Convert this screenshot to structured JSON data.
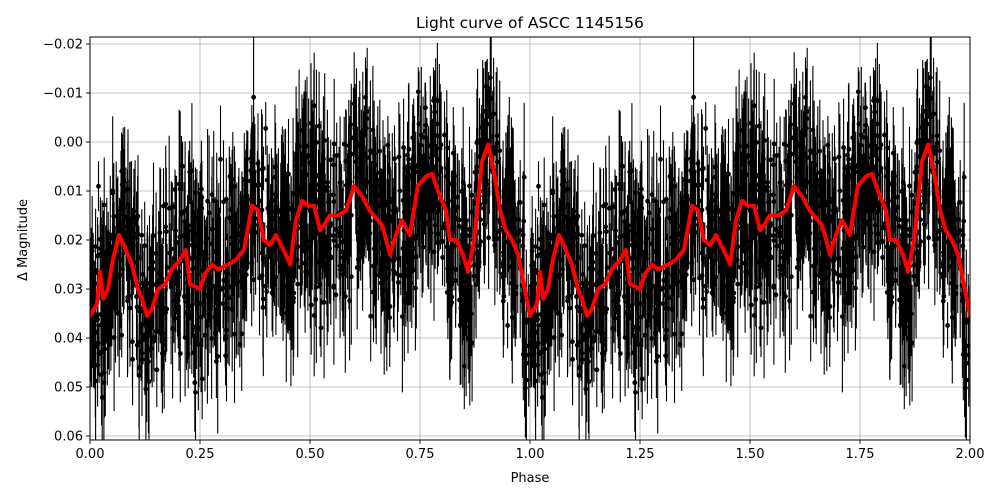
{
  "chart_data": {
    "type": "scatter",
    "title": "Light curve of ASCC 1145156",
    "xlabel": "Phase",
    "ylabel": "Δ Magnitude",
    "xlim": [
      0.0,
      2.0
    ],
    "ylim": [
      0.061,
      -0.0215
    ],
    "y_inverted": true,
    "grid": true,
    "legend": null,
    "x_ticks": [
      0.0,
      0.25,
      0.5,
      0.75,
      1.0,
      1.25,
      1.5,
      1.75,
      2.0
    ],
    "x_tick_labels": [
      "0.00",
      "0.25",
      "0.50",
      "0.75",
      "1.00",
      "1.25",
      "1.50",
      "1.75",
      "2.00"
    ],
    "y_ticks": [
      -0.02,
      -0.01,
      0.0,
      0.01,
      0.02,
      0.03,
      0.04,
      0.05,
      0.06
    ],
    "y_tick_labels": [
      "−0.02",
      "−0.01",
      "0.00",
      "0.01",
      "0.02",
      "0.03",
      "0.04",
      "0.05",
      "0.06"
    ],
    "series": [
      {
        "name": "observations",
        "kind": "errorbar-scatter",
        "color": "#000000",
        "description": "Dense black points with vertical error bars spanning roughly -0.02 to 0.06 across all phases, phase-folded twice (0-1 repeated in 1-2)"
      },
      {
        "name": "binned/smoothed model",
        "kind": "line",
        "color": "#ff0000",
        "linewidth": 4,
        "x": [
          0.0,
          0.016,
          0.023,
          0.03,
          0.041,
          0.052,
          0.066,
          0.077,
          0.095,
          0.109,
          0.118,
          0.13,
          0.141,
          0.155,
          0.171,
          0.186,
          0.205,
          0.218,
          0.227,
          0.25,
          0.261,
          0.277,
          0.291,
          0.314,
          0.332,
          0.35,
          0.368,
          0.382,
          0.395,
          0.409,
          0.423,
          0.445,
          0.455,
          0.468,
          0.482,
          0.495,
          0.509,
          0.523,
          0.532,
          0.545,
          0.564,
          0.582,
          0.6,
          0.618,
          0.636,
          0.664,
          0.682,
          0.695,
          0.709,
          0.727,
          0.745,
          0.764,
          0.777,
          0.791,
          0.809,
          0.818,
          0.832,
          0.848,
          0.859,
          0.873,
          0.891,
          0.905,
          0.918,
          0.932,
          0.945,
          0.959,
          0.973,
          0.986,
          1.0
        ],
        "y": [
          0.0355,
          0.033,
          0.0265,
          0.032,
          0.03,
          0.024,
          0.019,
          0.021,
          0.025,
          0.03,
          0.032,
          0.0355,
          0.034,
          0.03,
          0.029,
          0.026,
          0.024,
          0.022,
          0.029,
          0.03,
          0.027,
          0.025,
          0.026,
          0.025,
          0.024,
          0.022,
          0.013,
          0.014,
          0.02,
          0.021,
          0.019,
          0.023,
          0.025,
          0.016,
          0.012,
          0.013,
          0.013,
          0.018,
          0.017,
          0.015,
          0.015,
          0.014,
          0.009,
          0.011,
          0.014,
          0.017,
          0.023,
          0.019,
          0.016,
          0.019,
          0.009,
          0.007,
          0.0065,
          0.01,
          0.014,
          0.02,
          0.02,
          0.023,
          0.0265,
          0.02,
          0.004,
          0.0005,
          0.006,
          0.014,
          0.018,
          0.02,
          0.023,
          0.029,
          0.0355
        ],
        "repeats_with_period": 1.0
      }
    ]
  },
  "title": "Light curve of ASCC 1145156",
  "xlabel": "Phase",
  "ylabel": "Δ Magnitude"
}
